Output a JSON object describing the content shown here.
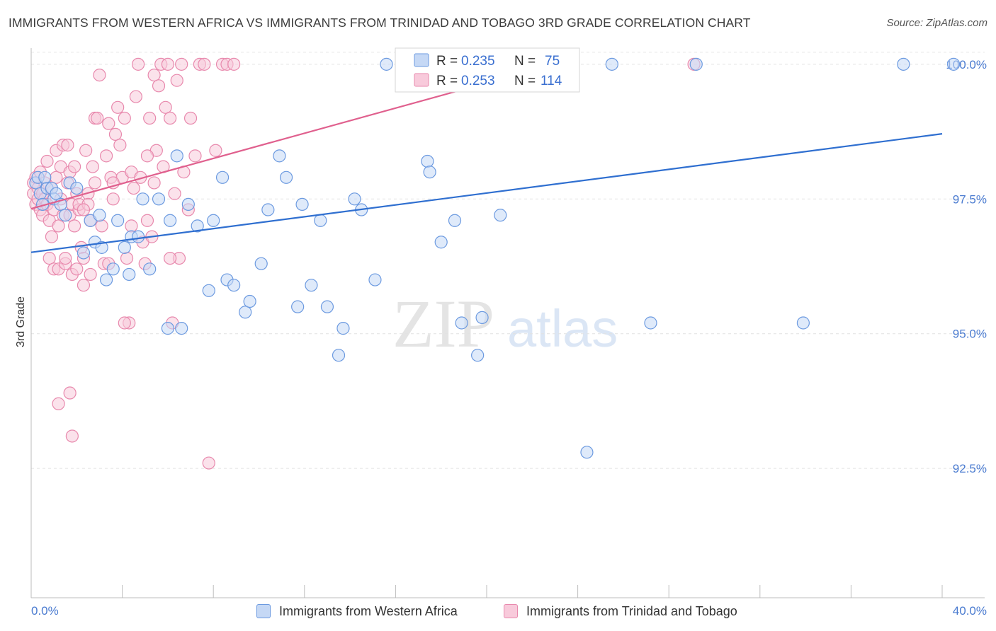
{
  "header": {
    "title": "IMMIGRANTS FROM WESTERN AFRICA VS IMMIGRANTS FROM TRINIDAD AND TOBAGO 3RD GRADE CORRELATION CHART",
    "source": "Source: ZipAtlas.com"
  },
  "watermark": {
    "zip": "ZIP",
    "atlas": "atlas"
  },
  "legend": {
    "blue": {
      "r_label": "R =",
      "r_value": "0.235",
      "n_label": "N =",
      "n_value": "75"
    },
    "pink": {
      "r_label": "R =",
      "r_value": "0.253",
      "n_label": "N =",
      "n_value": "114"
    }
  },
  "bottom_legend": {
    "blue": "Immigrants from Western Africa",
    "pink": "Immigrants from Trinidad and Tobago"
  },
  "colors": {
    "blue_fill": "#c5d8f5",
    "blue_stroke": "#6c9ae0",
    "blue_line": "#2f6fd0",
    "pink_fill": "#f8cadb",
    "pink_stroke": "#e889ad",
    "pink_line": "#e0608e"
  },
  "chart_data": {
    "type": "scatter",
    "title": "IMMIGRANTS FROM WESTERN AFRICA VS IMMIGRANTS FROM TRINIDAD AND TOBAGO 3RD GRADE CORRELATION CHART",
    "xlabel": "",
    "ylabel": "3rd Grade",
    "xlim": [
      0,
      40
    ],
    "ylim": [
      90.1,
      100.3
    ],
    "x_tick_labels": [
      "0.0%",
      "40.0%"
    ],
    "y_ticks": [
      100.0,
      97.5,
      95.0,
      92.5
    ],
    "y_tick_labels": [
      "100.0%",
      "97.5%",
      "95.0%",
      "92.5%"
    ],
    "grid": "horizontal dashed",
    "legend_position": "top-center",
    "series": [
      {
        "name": "Immigrants from Western Africa",
        "color": "#6c9ae0",
        "r": 0.235,
        "n": 75,
        "trend": {
          "x": [
            0,
            40
          ],
          "y": [
            96.51,
            98.71
          ]
        },
        "points": [
          [
            0.2,
            97.8
          ],
          [
            0.3,
            97.9
          ],
          [
            0.4,
            97.6
          ],
          [
            0.5,
            97.4
          ],
          [
            0.6,
            97.9
          ],
          [
            0.7,
            97.7
          ],
          [
            0.9,
            97.7
          ],
          [
            1.0,
            97.5
          ],
          [
            1.1,
            97.6
          ],
          [
            1.3,
            97.4
          ],
          [
            1.5,
            97.2
          ],
          [
            1.7,
            97.8
          ],
          [
            2.0,
            97.7
          ],
          [
            2.3,
            96.5
          ],
          [
            2.6,
            97.1
          ],
          [
            2.8,
            96.7
          ],
          [
            3.0,
            97.2
          ],
          [
            3.1,
            96.6
          ],
          [
            3.3,
            96.0
          ],
          [
            3.6,
            96.2
          ],
          [
            3.8,
            97.1
          ],
          [
            4.1,
            96.6
          ],
          [
            4.3,
            96.1
          ],
          [
            4.4,
            96.8
          ],
          [
            4.7,
            96.8
          ],
          [
            4.9,
            97.5
          ],
          [
            5.2,
            96.2
          ],
          [
            5.6,
            97.5
          ],
          [
            6.0,
            95.1
          ],
          [
            6.1,
            97.1
          ],
          [
            6.4,
            98.3
          ],
          [
            6.6,
            95.1
          ],
          [
            6.9,
            97.4
          ],
          [
            7.3,
            97.0
          ],
          [
            7.8,
            95.8
          ],
          [
            8.0,
            97.1
          ],
          [
            8.4,
            97.9
          ],
          [
            8.6,
            96.0
          ],
          [
            8.9,
            95.9
          ],
          [
            9.4,
            95.4
          ],
          [
            9.6,
            95.6
          ],
          [
            10.1,
            96.3
          ],
          [
            10.4,
            97.3
          ],
          [
            10.9,
            98.3
          ],
          [
            11.2,
            97.9
          ],
          [
            11.7,
            95.5
          ],
          [
            11.9,
            97.4
          ],
          [
            12.3,
            95.9
          ],
          [
            12.7,
            97.1
          ],
          [
            13.0,
            95.5
          ],
          [
            13.5,
            94.6
          ],
          [
            13.7,
            95.1
          ],
          [
            14.2,
            97.5
          ],
          [
            14.5,
            97.3
          ],
          [
            15.1,
            96.0
          ],
          [
            15.6,
            100.0
          ],
          [
            16.5,
            100.0
          ],
          [
            17.4,
            98.2
          ],
          [
            17.5,
            98.0
          ],
          [
            17.9,
            100.0
          ],
          [
            18.0,
            96.7
          ],
          [
            18.6,
            97.1
          ],
          [
            18.9,
            95.2
          ],
          [
            19.6,
            94.6
          ],
          [
            19.8,
            95.3
          ],
          [
            20.6,
            97.2
          ],
          [
            20.9,
            100.0
          ],
          [
            23.0,
            100.0
          ],
          [
            24.4,
            92.8
          ],
          [
            25.5,
            100.0
          ],
          [
            27.2,
            95.2
          ],
          [
            29.2,
            100.0
          ],
          [
            33.9,
            95.2
          ],
          [
            38.3,
            100.0
          ],
          [
            40.5,
            100.0
          ]
        ]
      },
      {
        "name": "Immigrants from Trinidad and Tobago",
        "color": "#e889ad",
        "r": 0.253,
        "n": 114,
        "trend": {
          "x": [
            0,
            24
          ],
          "y": [
            97.32,
            100.12
          ]
        },
        "points": [
          [
            0.1,
            97.8
          ],
          [
            0.1,
            97.6
          ],
          [
            0.2,
            97.4
          ],
          [
            0.2,
            97.9
          ],
          [
            0.3,
            97.5
          ],
          [
            0.3,
            97.7
          ],
          [
            0.4,
            97.3
          ],
          [
            0.4,
            98.0
          ],
          [
            0.5,
            97.6
          ],
          [
            0.5,
            97.2
          ],
          [
            0.6,
            97.8
          ],
          [
            0.6,
            97.5
          ],
          [
            0.7,
            97.4
          ],
          [
            0.7,
            98.2
          ],
          [
            0.8,
            97.1
          ],
          [
            0.8,
            96.4
          ],
          [
            0.9,
            97.7
          ],
          [
            0.9,
            96.8
          ],
          [
            1.0,
            97.3
          ],
          [
            1.0,
            96.2
          ],
          [
            1.1,
            97.9
          ],
          [
            1.1,
            98.4
          ],
          [
            1.2,
            97.0
          ],
          [
            1.2,
            96.2
          ],
          [
            1.3,
            97.5
          ],
          [
            1.3,
            98.1
          ],
          [
            1.4,
            98.5
          ],
          [
            1.4,
            97.2
          ],
          [
            1.5,
            96.3
          ],
          [
            1.5,
            96.4
          ],
          [
            1.6,
            97.8
          ],
          [
            1.6,
            98.5
          ],
          [
            1.7,
            97.2
          ],
          [
            1.7,
            98.0
          ],
          [
            1.8,
            96.1
          ],
          [
            1.8,
            97.4
          ],
          [
            1.9,
            98.1
          ],
          [
            1.9,
            97.0
          ],
          [
            2.0,
            96.2
          ],
          [
            2.0,
            97.6
          ],
          [
            2.1,
            97.3
          ],
          [
            2.1,
            97.4
          ],
          [
            2.2,
            96.6
          ],
          [
            2.3,
            95.9
          ],
          [
            2.3,
            96.4
          ],
          [
            2.4,
            98.4
          ],
          [
            2.5,
            97.6
          ],
          [
            2.5,
            97.4
          ],
          [
            2.6,
            97.1
          ],
          [
            2.7,
            98.1
          ],
          [
            2.8,
            97.8
          ],
          [
            2.8,
            99.0
          ],
          [
            2.9,
            99.0
          ],
          [
            3.0,
            99.8
          ],
          [
            3.1,
            97.0
          ],
          [
            3.2,
            96.3
          ],
          [
            3.3,
            98.3
          ],
          [
            3.4,
            98.9
          ],
          [
            3.5,
            97.9
          ],
          [
            3.6,
            97.5
          ],
          [
            3.7,
            98.7
          ],
          [
            3.8,
            99.2
          ],
          [
            3.9,
            98.5
          ],
          [
            4.0,
            97.9
          ],
          [
            4.1,
            99.0
          ],
          [
            4.2,
            96.4
          ],
          [
            4.3,
            95.2
          ],
          [
            4.4,
            98.0
          ],
          [
            4.5,
            97.7
          ],
          [
            4.6,
            99.4
          ],
          [
            4.7,
            100.0
          ],
          [
            4.8,
            97.9
          ],
          [
            4.9,
            96.7
          ],
          [
            5.0,
            96.3
          ],
          [
            5.1,
            97.1
          ],
          [
            5.2,
            99.0
          ],
          [
            5.3,
            96.8
          ],
          [
            5.4,
            99.8
          ],
          [
            5.5,
            98.4
          ],
          [
            5.6,
            99.6
          ],
          [
            5.7,
            100.0
          ],
          [
            5.8,
            98.1
          ],
          [
            5.9,
            99.2
          ],
          [
            6.0,
            100.0
          ],
          [
            6.1,
            99.0
          ],
          [
            6.2,
            95.2
          ],
          [
            6.3,
            97.6
          ],
          [
            6.4,
            99.7
          ],
          [
            6.5,
            96.4
          ],
          [
            6.6,
            100.0
          ],
          [
            6.7,
            98.0
          ],
          [
            6.9,
            97.3
          ],
          [
            7.0,
            99.0
          ],
          [
            7.2,
            98.3
          ],
          [
            7.4,
            100.0
          ],
          [
            7.6,
            100.0
          ],
          [
            7.8,
            92.6
          ],
          [
            8.1,
            98.4
          ],
          [
            8.4,
            100.0
          ],
          [
            8.6,
            100.0
          ],
          [
            8.9,
            100.0
          ],
          [
            1.2,
            93.7
          ],
          [
            1.7,
            93.9
          ],
          [
            1.8,
            93.1
          ],
          [
            2.3,
            97.3
          ],
          [
            2.6,
            96.1
          ],
          [
            3.4,
            96.3
          ],
          [
            3.6,
            97.8
          ],
          [
            4.1,
            95.2
          ],
          [
            4.4,
            97.0
          ],
          [
            5.1,
            98.3
          ],
          [
            5.4,
            97.8
          ],
          [
            6.1,
            96.4
          ],
          [
            29.1,
            100.0
          ]
        ]
      }
    ]
  }
}
